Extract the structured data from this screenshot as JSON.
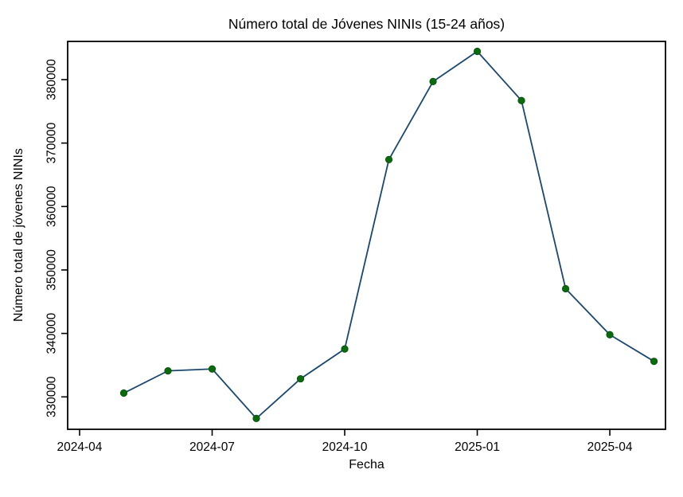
{
  "chart_data": {
    "type": "line",
    "title": "Número total de Jóvenes NINIs (15-24 años)",
    "xlabel": "Fecha",
    "ylabel": "Número total de jóvenes NINIs",
    "legend_position": "none",
    "grid": false,
    "line_color": "#1a476f",
    "marker_color": "#0a6b0c",
    "marker_edge_color": "#054d08",
    "axis_color": "#000000",
    "background_color": "#ffffff",
    "marker": "circle",
    "x_unit": "months since 2024-04",
    "xlim": [
      -0.27,
      13.26
    ],
    "ylim": [
      324890,
      386020
    ],
    "y_ticks": [
      330000,
      340000,
      350000,
      360000,
      370000,
      380000
    ],
    "x_ticks": [
      {
        "pos": 0,
        "label": "2024-04"
      },
      {
        "pos": 3,
        "label": "2024-07"
      },
      {
        "pos": 6,
        "label": "2024-10"
      },
      {
        "pos": 9,
        "label": "2025-01"
      },
      {
        "pos": 12,
        "label": "2025-04"
      }
    ],
    "points": [
      {
        "date": "2024-05",
        "month_index": 1,
        "value": 330600
      },
      {
        "date": "2024-06",
        "month_index": 2,
        "value": 334100
      },
      {
        "date": "2024-07",
        "month_index": 3,
        "value": 334400
      },
      {
        "date": "2024-08",
        "month_index": 4,
        "value": 326600
      },
      {
        "date": "2024-09",
        "month_index": 5,
        "value": 332850
      },
      {
        "date": "2024-10",
        "month_index": 6,
        "value": 337550
      },
      {
        "date": "2024-11",
        "month_index": 7,
        "value": 367400
      },
      {
        "date": "2024-12",
        "month_index": 8,
        "value": 379700
      },
      {
        "date": "2025-01",
        "month_index": 9,
        "value": 384450
      },
      {
        "date": "2025-02",
        "month_index": 10,
        "value": 376700
      },
      {
        "date": "2025-03",
        "month_index": 11,
        "value": 347050
      },
      {
        "date": "2025-04",
        "month_index": 12,
        "value": 339800
      },
      {
        "date": "2025-05",
        "month_index": 13,
        "value": 335600
      }
    ]
  }
}
